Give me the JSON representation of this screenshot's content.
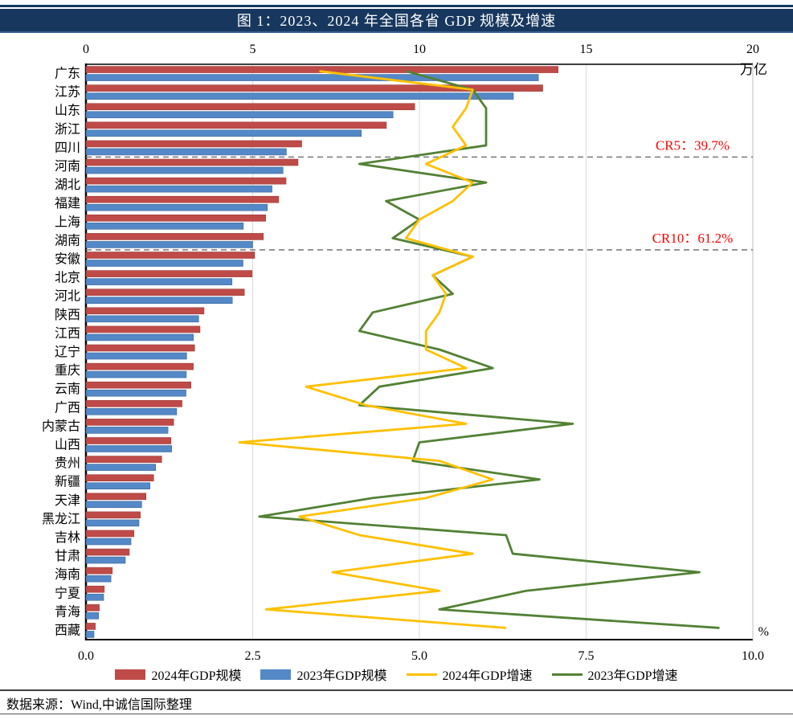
{
  "title": "图 1：2023、2024 年全国各省 GDP 规模及增速",
  "source_note": "数据来源：Wind,中诚信国际整理",
  "colors": {
    "title_band": "#17375E",
    "title_underline": "#365F91",
    "bar_2024": "#BE4B48",
    "bar_2024_border": "#9E3B39",
    "bar_2023": "#5488C7",
    "bar_2023_border": "#3D6699",
    "line_2024": "#FFC000",
    "line_2023": "#538135",
    "annotation_text": "#FF0000",
    "dashed_line": "#7F7F7F",
    "gridline": "#D9D9D9",
    "axis_text": "#000000"
  },
  "chart_data": {
    "type": "bar",
    "orientation": "horizontal",
    "grid": true,
    "legend_position": "bottom",
    "categories": [
      "广东",
      "江苏",
      "山东",
      "浙江",
      "四川",
      "河南",
      "湖北",
      "福建",
      "上海",
      "湖南",
      "安徽",
      "北京",
      "河北",
      "陕西",
      "江西",
      "辽宁",
      "重庆",
      "云南",
      "广西",
      "内蒙古",
      "山西",
      "贵州",
      "新疆",
      "天津",
      "黑龙江",
      "吉林",
      "甘肃",
      "海南",
      "宁夏",
      "青海",
      "西藏"
    ],
    "series": [
      {
        "name": "2024年GDP规模",
        "type": "bar",
        "axis": "top",
        "color": "#BE4B48",
        "values": [
          14.16,
          13.7,
          9.86,
          9.01,
          6.47,
          6.36,
          6.0,
          5.78,
          5.39,
          5.32,
          5.06,
          4.98,
          4.75,
          3.54,
          3.42,
          3.26,
          3.22,
          3.15,
          2.88,
          2.63,
          2.55,
          2.27,
          2.03,
          1.8,
          1.63,
          1.44,
          1.3,
          0.79,
          0.55,
          0.4,
          0.28
        ]
      },
      {
        "name": "2023年GDP规模",
        "type": "bar",
        "axis": "top",
        "color": "#5488C7",
        "values": [
          13.57,
          12.82,
          9.21,
          8.26,
          6.01,
          5.91,
          5.58,
          5.44,
          4.72,
          5.0,
          4.71,
          4.38,
          4.39,
          3.38,
          3.22,
          3.02,
          3.01,
          3.0,
          2.72,
          2.46,
          2.57,
          2.09,
          1.92,
          1.67,
          1.59,
          1.35,
          1.18,
          0.75,
          0.53,
          0.38,
          0.24
        ]
      },
      {
        "name": "2024年GDP增速",
        "type": "line",
        "axis": "bottom",
        "color": "#FFC000",
        "values": [
          3.5,
          5.8,
          5.7,
          5.5,
          5.7,
          5.1,
          5.8,
          5.5,
          5.0,
          4.8,
          5.8,
          5.2,
          5.4,
          5.3,
          5.1,
          5.1,
          5.7,
          3.3,
          4.2,
          5.7,
          2.3,
          5.3,
          6.1,
          5.1,
          3.2,
          4.1,
          5.8,
          3.7,
          5.3,
          2.7,
          6.3
        ]
      },
      {
        "name": "2023年GDP增速",
        "type": "line",
        "axis": "bottom",
        "color": "#538135",
        "values": [
          4.8,
          5.8,
          6.0,
          6.0,
          6.0,
          4.1,
          6.0,
          4.5,
          5.0,
          4.6,
          5.8,
          5.2,
          5.5,
          4.3,
          4.1,
          5.3,
          6.1,
          4.4,
          4.1,
          7.3,
          5.0,
          4.9,
          6.8,
          4.3,
          2.6,
          6.3,
          6.4,
          9.2,
          6.6,
          5.3,
          9.5
        ]
      }
    ],
    "top_axis": {
      "range": [
        0,
        20
      ],
      "ticks": [
        "0",
        "5",
        "10",
        "15",
        "20"
      ],
      "unit": "万亿"
    },
    "bottom_axis": {
      "range": [
        0,
        10
      ],
      "ticks": [
        "0.0",
        "2.5",
        "5.0",
        "7.5",
        "10.0"
      ],
      "unit": "%"
    },
    "annotations": [
      {
        "label": "CR5：39.7%",
        "after_category_index": 4
      },
      {
        "label": "CR10：61.2%",
        "after_category_index": 9
      }
    ]
  }
}
